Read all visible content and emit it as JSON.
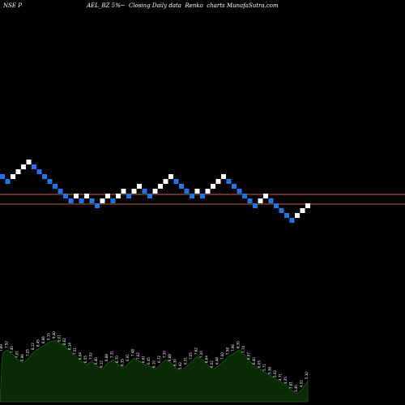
{
  "header": {
    "text": "NSE P                                    AEL_BZ 5%~  Closing Daily data  Renko  charts MunafaSutra.com"
  },
  "colors": {
    "up_brick": "#ffffff",
    "down_brick": "#1e74e8",
    "ref_line": "#c0622c",
    "volume_fill": "#0a2a05",
    "volume_stroke": "#1a5a10",
    "background": "#000000"
  },
  "chart_data": {
    "type": "renko",
    "title": "",
    "bricks": [
      {
        "dir": "down",
        "level": 218
      },
      {
        "dir": "down",
        "level": 224
      },
      {
        "dir": "up",
        "level": 218
      },
      {
        "dir": "up",
        "level": 212
      },
      {
        "dir": "up",
        "level": 206
      },
      {
        "dir": "up",
        "level": 200
      },
      {
        "dir": "down",
        "level": 206
      },
      {
        "dir": "down",
        "level": 212
      },
      {
        "dir": "down",
        "level": 218
      },
      {
        "dir": "down",
        "level": 224
      },
      {
        "dir": "down",
        "level": 230
      },
      {
        "dir": "down",
        "level": 236
      },
      {
        "dir": "down",
        "level": 242
      },
      {
        "dir": "down",
        "level": 248
      },
      {
        "dir": "up",
        "level": 242
      },
      {
        "dir": "down",
        "level": 248
      },
      {
        "dir": "up",
        "level": 242
      },
      {
        "dir": "down",
        "level": 248
      },
      {
        "dir": "down",
        "level": 254
      },
      {
        "dir": "up",
        "level": 248
      },
      {
        "dir": "up",
        "level": 242
      },
      {
        "dir": "down",
        "level": 248
      },
      {
        "dir": "up",
        "level": 242
      },
      {
        "dir": "up",
        "level": 236
      },
      {
        "dir": "down",
        "level": 242
      },
      {
        "dir": "up",
        "level": 236
      },
      {
        "dir": "up",
        "level": 230
      },
      {
        "dir": "down",
        "level": 236
      },
      {
        "dir": "down",
        "level": 242
      },
      {
        "dir": "up",
        "level": 236
      },
      {
        "dir": "up",
        "level": 230
      },
      {
        "dir": "up",
        "level": 224
      },
      {
        "dir": "up",
        "level": 218
      },
      {
        "dir": "down",
        "level": 224
      },
      {
        "dir": "down",
        "level": 230
      },
      {
        "dir": "down",
        "level": 236
      },
      {
        "dir": "down",
        "level": 242
      },
      {
        "dir": "up",
        "level": 236
      },
      {
        "dir": "down",
        "level": 242
      },
      {
        "dir": "up",
        "level": 236
      },
      {
        "dir": "up",
        "level": 230
      },
      {
        "dir": "up",
        "level": 224
      },
      {
        "dir": "up",
        "level": 218
      },
      {
        "dir": "down",
        "level": 224
      },
      {
        "dir": "down",
        "level": 230
      },
      {
        "dir": "down",
        "level": 236
      },
      {
        "dir": "down",
        "level": 242
      },
      {
        "dir": "down",
        "level": 248
      },
      {
        "dir": "down",
        "level": 254
      },
      {
        "dir": "up",
        "level": 248
      },
      {
        "dir": "up",
        "level": 242
      },
      {
        "dir": "down",
        "level": 248
      },
      {
        "dir": "down",
        "level": 254
      },
      {
        "dir": "down",
        "level": 260
      },
      {
        "dir": "down",
        "level": 266
      },
      {
        "dir": "down",
        "level": 272
      },
      {
        "dir": "up",
        "level": 266
      },
      {
        "dir": "up",
        "level": 260
      },
      {
        "dir": "up",
        "level": 254
      }
    ],
    "reference_levels": [
      240,
      252
    ],
    "volume": {
      "heights": [
        60,
        64,
        58,
        52,
        48,
        54,
        62,
        66,
        70,
        74,
        76,
        72,
        68,
        62,
        56,
        50,
        46,
        50,
        44,
        40,
        48,
        52,
        46,
        42,
        48,
        54,
        50,
        46,
        44,
        40,
        46,
        52,
        48,
        42,
        38,
        44,
        50,
        56,
        52,
        46,
        40,
        44,
        50,
        56,
        60,
        64,
        58,
        50,
        44,
        40,
        36,
        32,
        28,
        24,
        20,
        14,
        10,
        16,
        26
      ],
      "labels": [
        "7.89",
        "7.52",
        "7.40",
        "7.01",
        "6.96",
        "7.25",
        "8.12",
        "8.45",
        "8.96",
        "9.15",
        "9.40",
        "9.01",
        "8.62",
        "8.14",
        "7.51",
        "6.94",
        "6.55",
        "7.02",
        "6.40",
        "6.12",
        "6.88",
        "7.31",
        "6.70",
        "6.35",
        "6.91",
        "7.48",
        "7.02",
        "6.61",
        "6.45",
        "6.10",
        "6.72",
        "7.30",
        "6.88",
        "6.30",
        "5.92",
        "6.51",
        "7.05",
        "7.62",
        "7.20",
        "6.64",
        "6.02",
        "6.48",
        "7.00",
        "7.58",
        "7.96",
        "8.30",
        "7.74",
        "6.97",
        "6.40",
        "6.05",
        "5.71",
        "5.38",
        "5.02",
        "4.71",
        "4.35",
        "3.81",
        "3.40",
        "4.02",
        "5.10"
      ]
    }
  }
}
